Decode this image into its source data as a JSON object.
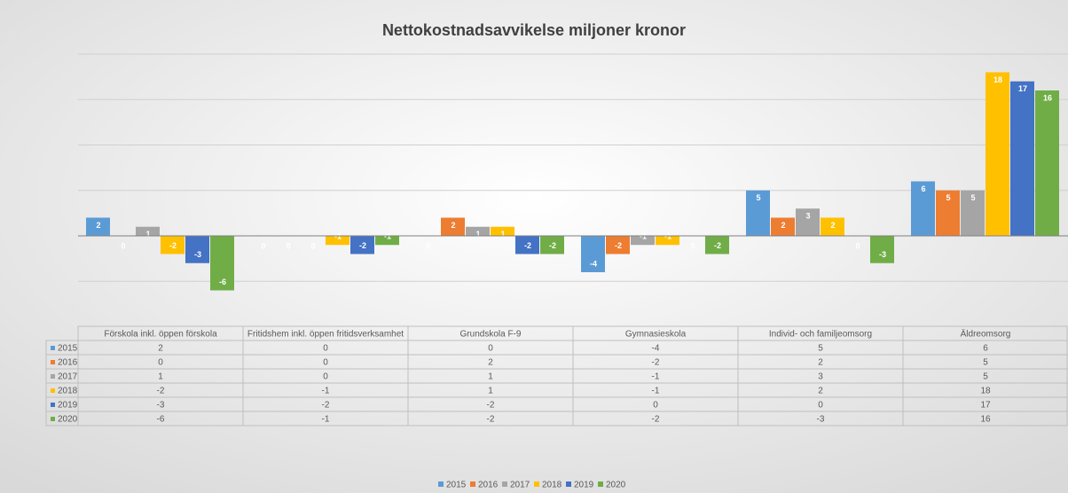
{
  "chart_data": {
    "type": "bar",
    "title": "Nettokostnadsavvikelse miljoner kronor",
    "categories": [
      "Förskola inkl. öppen förskola",
      "Fritidshem inkl. öppen fritidsverksamhet",
      "Grundskola F-9",
      "Gymnasieskola",
      "Individ- och familjeomsorg",
      "Äldreomsorg"
    ],
    "series": [
      {
        "name": "2015",
        "color": "#5b9bd5",
        "values": [
          2,
          0,
          0,
          -4,
          5,
          6
        ]
      },
      {
        "name": "2016",
        "color": "#ed7d31",
        "values": [
          0,
          0,
          2,
          -2,
          2,
          5
        ]
      },
      {
        "name": "2017",
        "color": "#a5a5a5",
        "values": [
          1,
          0,
          1,
          -1,
          3,
          5
        ]
      },
      {
        "name": "2018",
        "color": "#ffc000",
        "values": [
          -2,
          -1,
          1,
          -1,
          2,
          18
        ]
      },
      {
        "name": "2019",
        "color": "#4472c4",
        "values": [
          -3,
          -2,
          -2,
          0,
          0,
          17
        ]
      },
      {
        "name": "2020",
        "color": "#70ad47",
        "values": [
          -6,
          -1,
          -2,
          -2,
          -3,
          16
        ]
      }
    ],
    "ylim": [
      -8,
      20
    ],
    "yticks": [
      -5,
      0,
      5,
      10,
      15,
      20
    ],
    "grid": true,
    "legend": "bottom"
  }
}
